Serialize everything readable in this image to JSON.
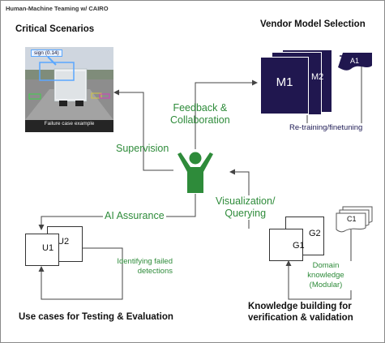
{
  "header": {
    "title": "Human-Machine Teaming w/ CAIRO"
  },
  "sections": {
    "critical_scenarios": "Critical Scenarios",
    "vendor_model_selection": "Vendor Model Selection",
    "use_cases": "Use cases for Testing & Evaluation",
    "knowledge_building_line1": "Knowledge building for",
    "knowledge_building_line2": "verification & validation"
  },
  "failure_image": {
    "tag": "sign (0.14)",
    "caption": "Failure case example"
  },
  "models": {
    "m1": "M1",
    "m2": "M2",
    "a1": "A1",
    "u1": "U1",
    "u2": "U2",
    "g1": "G1",
    "g2": "G2",
    "c1": "C1"
  },
  "flows": {
    "feedback_line1": "Feedback &",
    "feedback_line2": "Collaboration",
    "supervision": "Supervision",
    "ai_assurance": "AI Assurance",
    "visualization_line1": "Visualization/",
    "visualization_line2": "Querying",
    "retraining": "Re-training/finetuning",
    "identifying_line1": "Identifying failed",
    "identifying_line2": "detections",
    "domain_line1": "Domain",
    "domain_line2": "knowledge",
    "domain_line3": "(Modular)"
  },
  "colors": {
    "green": "#2e8b3a",
    "navy": "#20174f",
    "arrow": "#444444"
  }
}
